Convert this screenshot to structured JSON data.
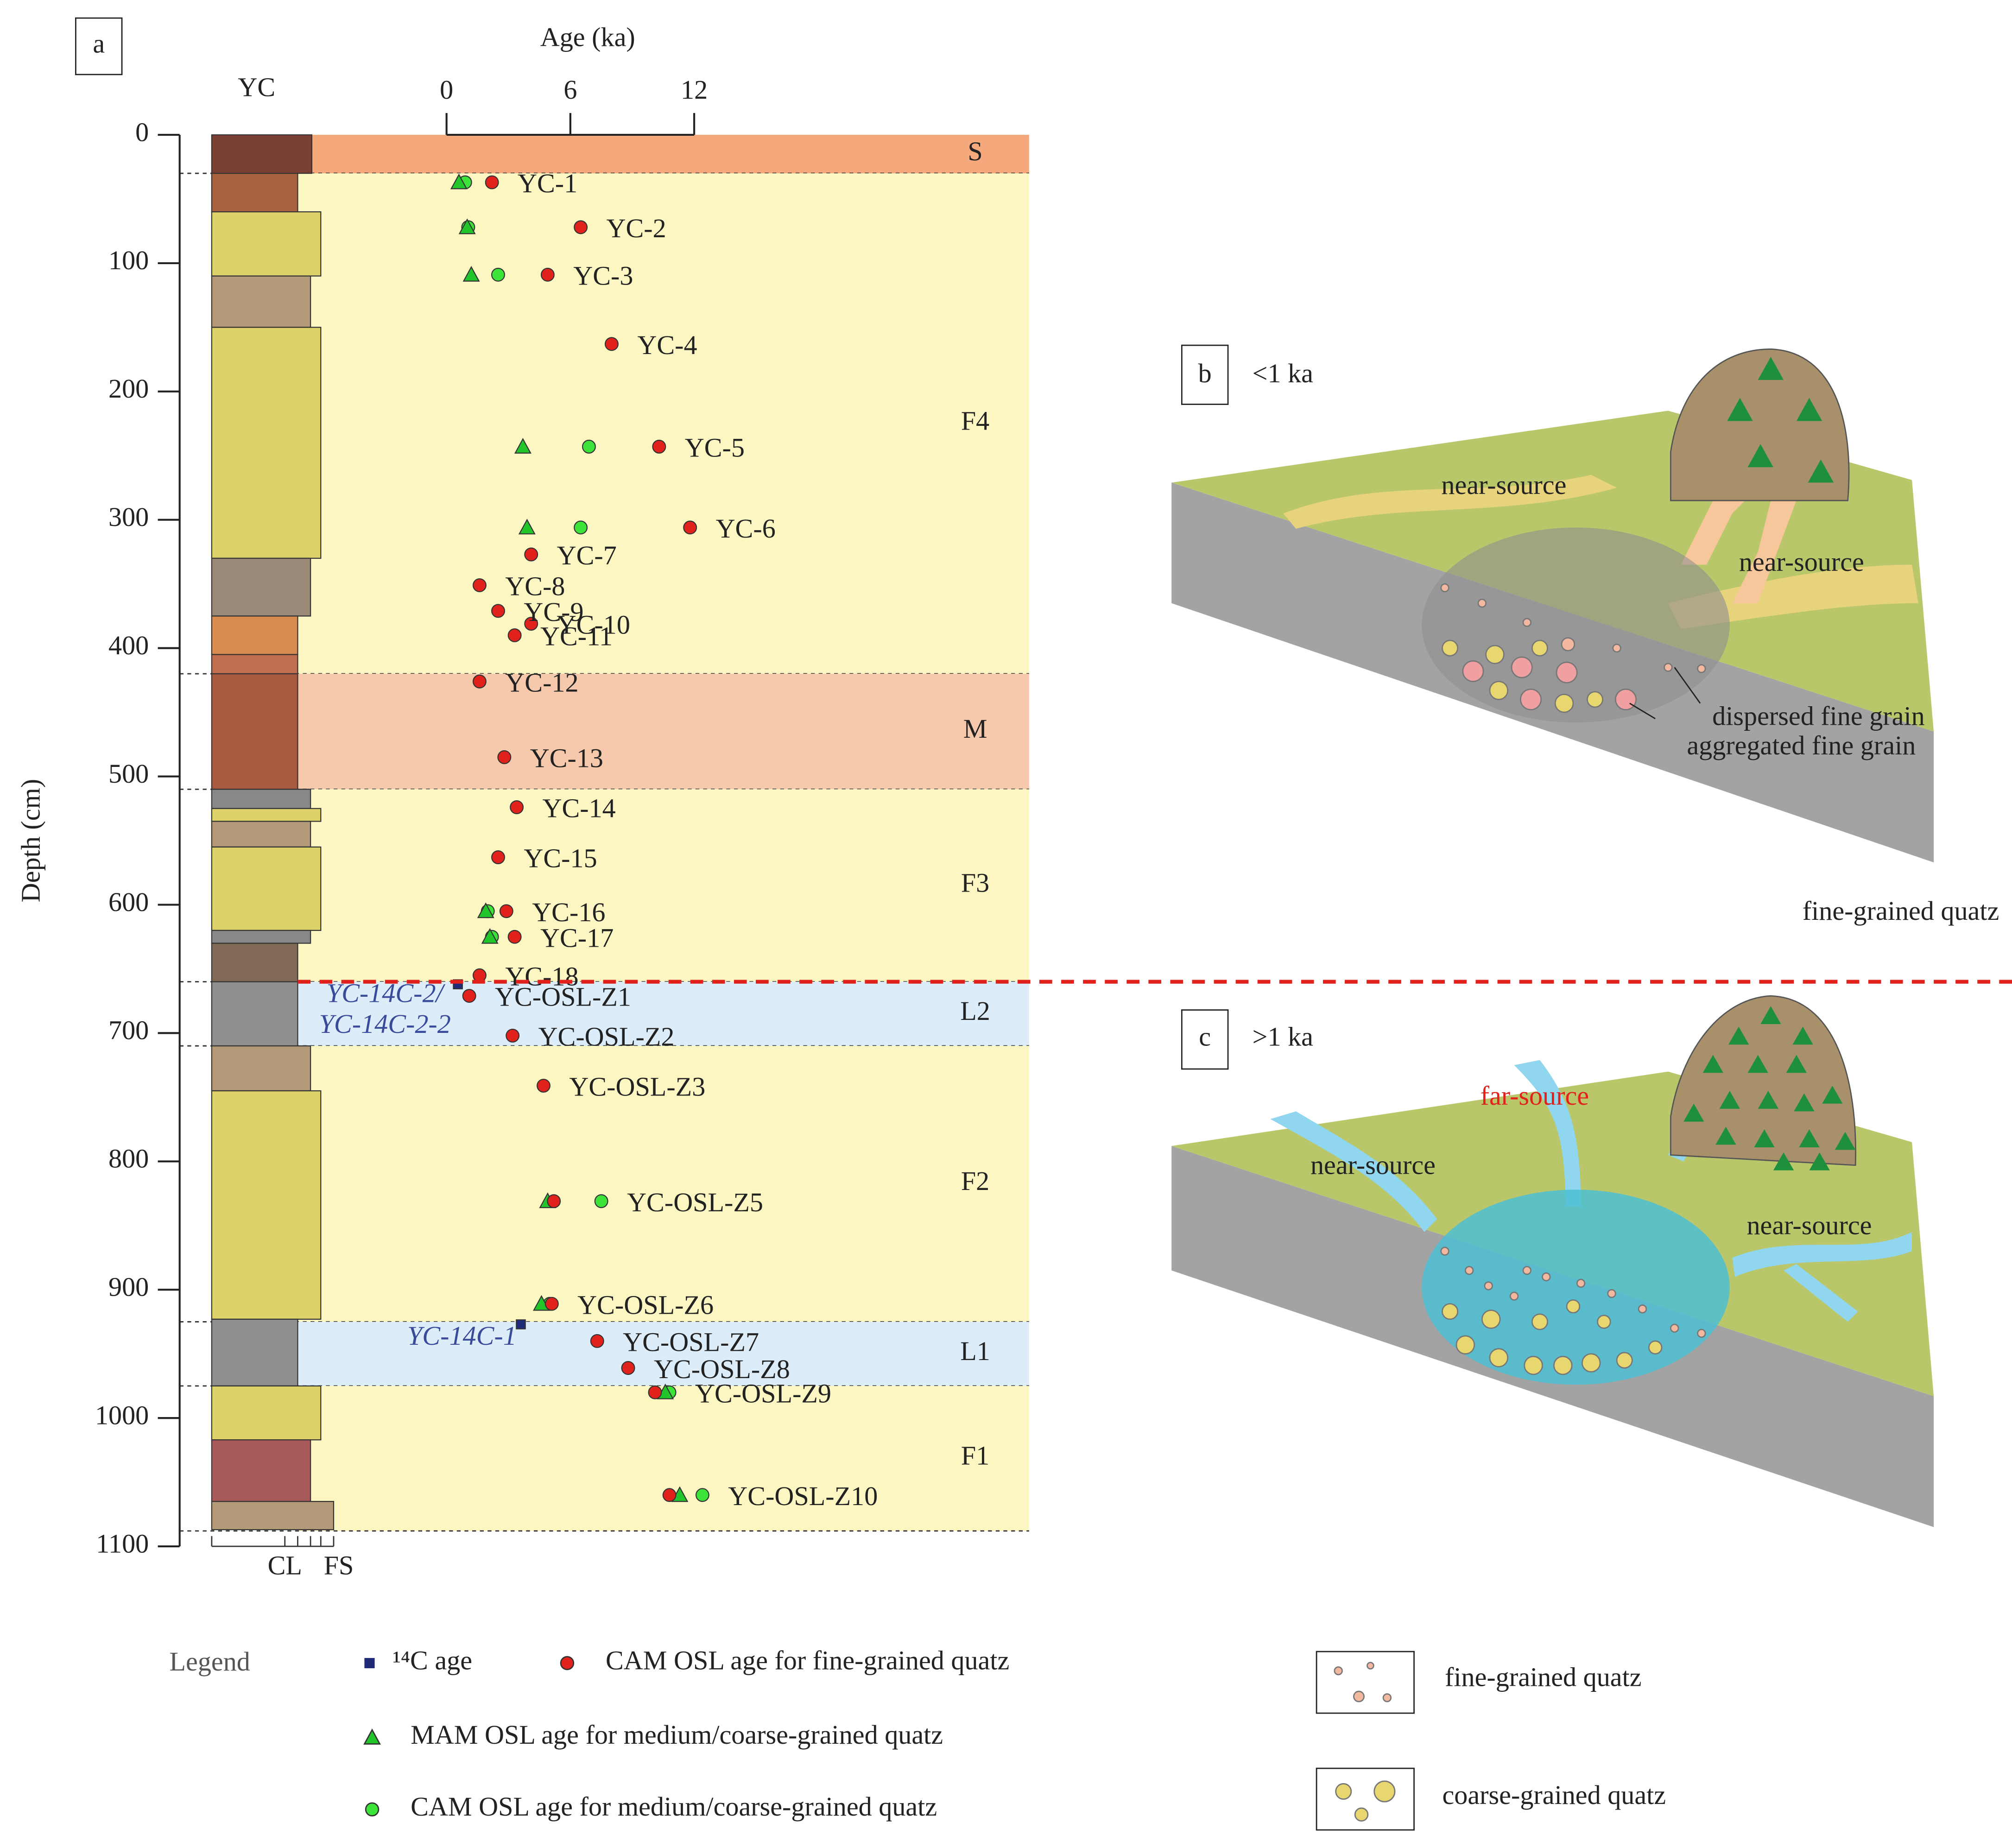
{
  "chart_data": {
    "type": "scatter",
    "panel_label": "a",
    "column_title": "YC",
    "x_label": "Age (ka)",
    "y_label": "Depth (cm)",
    "xlim": [
      0,
      12
    ],
    "xticks": [
      0,
      6,
      12
    ],
    "ylim": [
      0,
      1100
    ],
    "yticks": [
      0,
      100,
      200,
      300,
      400,
      500,
      600,
      700,
      800,
      900,
      1000,
      1100
    ],
    "grain_scale": [
      "CL",
      "FS"
    ],
    "units": [
      {
        "name": "S",
        "top": 0,
        "bottom": 30,
        "color": "#f4a87c"
      },
      {
        "name": "F4",
        "top": 30,
        "bottom": 420,
        "color": "#fcf7c2"
      },
      {
        "name": "M",
        "top": 420,
        "bottom": 510,
        "color": "#f6c9ad"
      },
      {
        "name": "F3",
        "top": 510,
        "bottom": 660,
        "color": "#fcf7c2"
      },
      {
        "name": "L2",
        "top": 660,
        "bottom": 710,
        "color": "#dcedf9"
      },
      {
        "name": "F2",
        "top": 710,
        "bottom": 925,
        "color": "#fcf7c2"
      },
      {
        "name": "L1",
        "top": 925,
        "bottom": 975,
        "color": "#dcedf9"
      },
      {
        "name": "F1",
        "top": 975,
        "bottom": 1088,
        "color": "#fcf7c2"
      }
    ],
    "samples": [
      "YC-1",
      "YC-2",
      "YC-3",
      "YC-4",
      "YC-5",
      "YC-6",
      "YC-7",
      "YC-8",
      "YC-9",
      "YC-10",
      "YC-11",
      "YC-12",
      "YC-13",
      "YC-14",
      "YC-15",
      "YC-16",
      "YC-17",
      "YC-18",
      "YC-OSL-Z1",
      "YC-OSL-Z2",
      "YC-OSL-Z3",
      "YC-OSL-Z5",
      "YC-OSL-Z6",
      "YC-OSL-Z7",
      "YC-OSL-Z8",
      "YC-OSL-Z9",
      "YC-OSL-Z10"
    ],
    "series": [
      {
        "name": "CAM OSL age for fine-grained quatz",
        "color": "#e0211c",
        "marker": "circle",
        "x": [
          2.2,
          6.5,
          4.9,
          8.0,
          10.3,
          11.8,
          4.1,
          1.6,
          2.5,
          4.1,
          3.3,
          1.6,
          2.8,
          3.4,
          2.5,
          2.9,
          3.3,
          1.6,
          1.1,
          3.2,
          4.7,
          5.2,
          5.1,
          7.3,
          8.8,
          10.1,
          10.8
        ],
        "y": [
          37,
          72,
          109,
          163,
          243,
          306,
          327,
          351,
          371,
          381,
          390,
          426,
          485,
          524,
          563,
          605,
          625,
          655,
          671,
          702,
          741,
          831,
          911,
          940,
          961,
          980,
          1060
        ]
      },
      {
        "name": "MAM OSL age for medium/coarse-grained quatz",
        "color": "#22c52a",
        "marker": "triangle",
        "x": [
          0.6,
          1.0,
          1.2,
          null,
          3.7,
          3.9,
          null,
          null,
          null,
          null,
          null,
          null,
          null,
          null,
          null,
          1.9,
          2.1,
          null,
          null,
          null,
          null,
          4.9,
          4.6,
          null,
          null,
          10.6,
          11.3
        ],
        "y": [
          37,
          72,
          109,
          null,
          243,
          306,
          null,
          null,
          null,
          null,
          null,
          null,
          null,
          null,
          null,
          605,
          625,
          null,
          null,
          null,
          null,
          831,
          911,
          null,
          null,
          980,
          1060
        ]
      },
      {
        "name": "CAM OSL age for medium/coarse-grained quatz",
        "color": "#3ee33a",
        "marker": "circle",
        "x": [
          0.9,
          1.05,
          2.5,
          null,
          6.9,
          6.5,
          null,
          null,
          null,
          null,
          null,
          null,
          null,
          null,
          null,
          2.0,
          2.2,
          null,
          null,
          null,
          null,
          7.5,
          5.0,
          null,
          null,
          10.8,
          12.4
        ],
        "y": [
          37,
          72,
          109,
          null,
          243,
          306,
          null,
          null,
          null,
          null,
          null,
          null,
          null,
          null,
          null,
          605,
          625,
          null,
          null,
          null,
          null,
          831,
          911,
          null,
          null,
          980,
          1060
        ]
      },
      {
        "name": "¹⁴C age",
        "color": "#1f2a78",
        "marker": "square",
        "labels": [
          "YC-14C-2/",
          "YC-14C-2-2",
          "YC-14C-1"
        ],
        "x": [
          0.55,
          3.6
        ],
        "y": [
          662,
          927
        ]
      }
    ],
    "legend_title": "Legend"
  },
  "diagram": {
    "panel_b": {
      "label": "b",
      "age": "<1 ka",
      "near_source_1": "near-source",
      "near_source_2": "near-source",
      "dispersed": "dispersed fine grain",
      "aggregated": "aggregated fine grain",
      "caption": "fine-grained quatz"
    },
    "panel_c": {
      "label": "c",
      "age": ">1 ka",
      "far_source": "far-source",
      "near_source_1": "near-source",
      "near_source_2": "near-source"
    },
    "key": {
      "fine": "fine-grained quatz",
      "coarse": "coarse-grained quatz"
    }
  }
}
